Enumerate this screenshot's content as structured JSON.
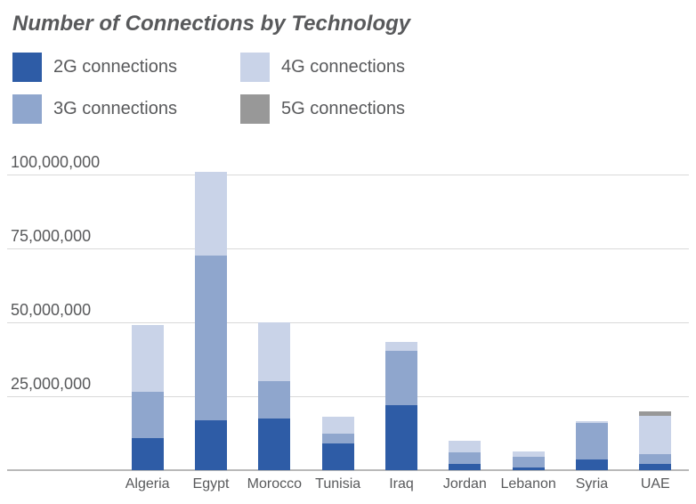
{
  "title": "Number of Connections by Technology",
  "colors": {
    "text": "#58595b",
    "gridline": "#d9d9d9",
    "axis_line": "#b9b9b9",
    "series_2g": "#2e5ca6",
    "series_3g": "#8fa6cd",
    "series_4g": "#c9d3e8",
    "series_5g": "#989898"
  },
  "legend": {
    "items": [
      {
        "id": "2g",
        "label": "2G connections",
        "color": "#2e5ca6"
      },
      {
        "id": "3g",
        "label": "3G connections",
        "color": "#8fa6cd"
      },
      {
        "id": "4g",
        "label": "4G connections",
        "color": "#c9d3e8"
      },
      {
        "id": "5g",
        "label": "5G connections",
        "color": "#989898"
      }
    ]
  },
  "chart_data": {
    "type": "bar",
    "stacked": true,
    "title": "Number of Connections by Technology",
    "categories": [
      "Algeria",
      "Egypt",
      "Morocco",
      "Tunisia",
      "Iraq",
      "Jordan",
      "Lebanon",
      "Syria",
      "UAE"
    ],
    "series": [
      {
        "name": "2G connections",
        "color": "#2e5ca6",
        "values": [
          11000000,
          17000000,
          17500000,
          9000000,
          22000000,
          2000000,
          1000000,
          3500000,
          2000000
        ]
      },
      {
        "name": "3G connections",
        "color": "#8fa6cd",
        "values": [
          15500000,
          55500000,
          12500000,
          3500000,
          18500000,
          4000000,
          3500000,
          12500000,
          3500000
        ]
      },
      {
        "name": "4G connections",
        "color": "#c9d3e8",
        "values": [
          22500000,
          28500000,
          20000000,
          5500000,
          3000000,
          4000000,
          2000000,
          500000,
          13000000
        ]
      },
      {
        "name": "5G connections",
        "color": "#989898",
        "values": [
          0,
          0,
          0,
          0,
          0,
          0,
          0,
          0,
          1500000
        ]
      }
    ],
    "xlabel": "",
    "ylabel": "",
    "ylim": [
      0,
      104000000
    ],
    "yticks": [
      {
        "value": 25000000,
        "label": "25,000,000"
      },
      {
        "value": 50000000,
        "label": "50,000,000"
      },
      {
        "value": 75000000,
        "label": "75,000,000"
      },
      {
        "value": 100000000,
        "label": "100,000,000"
      }
    ],
    "grid": true,
    "legend_position": "top-left"
  }
}
